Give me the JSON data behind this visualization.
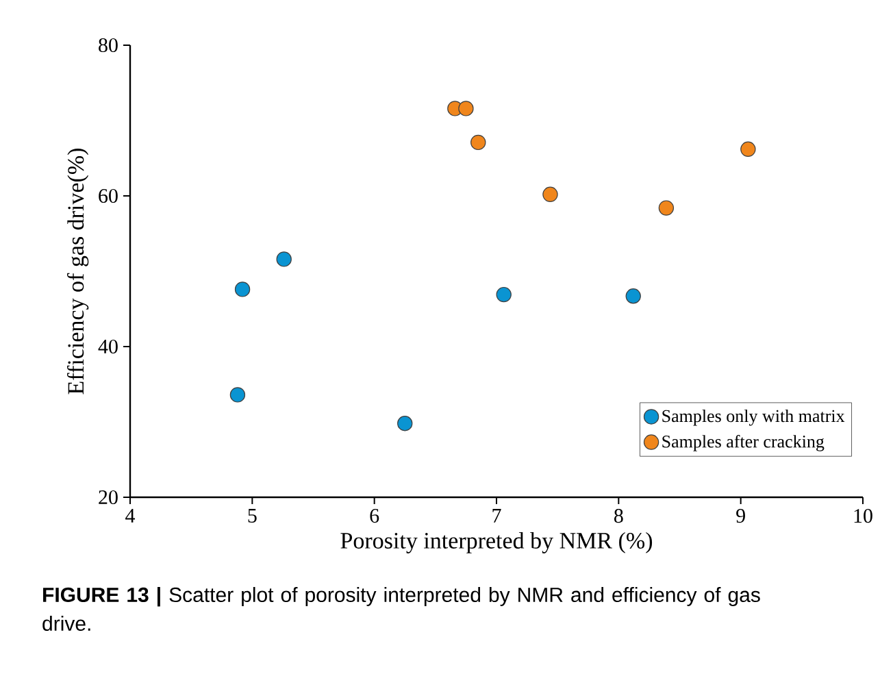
{
  "chart_data": {
    "type": "scatter",
    "xlabel": "Porosity interpreted by NMR (%)",
    "ylabel": "Efficiency of gas drive(%)",
    "xlim": [
      4,
      10
    ],
    "xticks": [
      4,
      5,
      6,
      7,
      8,
      9,
      10
    ],
    "ylim": [
      20,
      80
    ],
    "yticks": [
      20,
      40,
      60,
      80
    ],
    "grid": false,
    "legend": "bottom right",
    "marker": "circle",
    "series": [
      {
        "name": "Samples only with matrix",
        "color": "#0a94d2",
        "x": [
          4.92,
          5.26,
          4.88,
          6.25,
          7.06,
          8.12
        ],
        "values": [
          47.6,
          51.6,
          33.6,
          29.8,
          46.9,
          46.7
        ]
      },
      {
        "name": "Samples after cracking",
        "color": "#f0861c",
        "x": [
          6.66,
          6.75,
          6.85,
          7.44,
          8.39,
          9.06
        ],
        "values": [
          71.6,
          71.6,
          67.1,
          60.2,
          58.4,
          66.2
        ]
      }
    ],
    "annotations": [
      "**FIGURE 13 |** Scatter plot of porosity interpreted by NMR and efficiency of gas drive."
    ]
  }
}
